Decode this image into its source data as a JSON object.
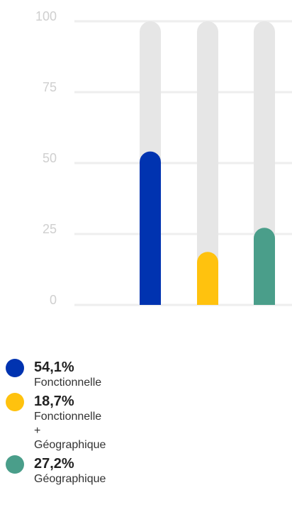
{
  "chart_data": {
    "type": "bar",
    "categories": [
      null,
      null,
      null
    ],
    "values": [
      54.1,
      18.7,
      27.2
    ],
    "value_labels": [
      "54,1%",
      "18,7%",
      "27,2%"
    ],
    "labels": [
      "Fonctionnelle",
      "Fonctionnelle + Géographique",
      "Géographique"
    ],
    "colors": [
      "#0033b0",
      "#ffc20e",
      "#4a9e8a"
    ],
    "ylim": [
      0,
      100
    ],
    "yticks": [
      0,
      25,
      50,
      75,
      100
    ],
    "grid": true
  }
}
